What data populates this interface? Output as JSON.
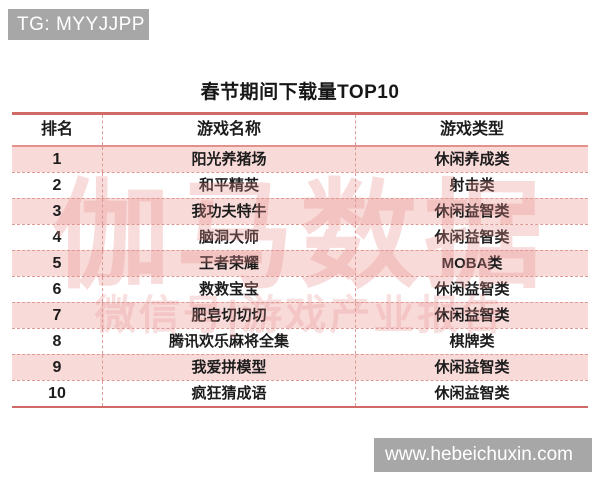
{
  "top_banner": {
    "text": "TG: MYYJJPP"
  },
  "title": "春节期间下载量TOP10",
  "watermark": {
    "line1": "伽马数据",
    "line2": "微信号|游戏产业报告"
  },
  "table": {
    "headers": [
      "排名",
      "游戏名称",
      "游戏类型"
    ],
    "rows": [
      {
        "rank": "1",
        "name": "阳光养猪场",
        "type": "休闲养成类"
      },
      {
        "rank": "2",
        "name": "和平精英",
        "type": "射击类"
      },
      {
        "rank": "3",
        "name": "我功夫特牛",
        "type": "休闲益智类"
      },
      {
        "rank": "4",
        "name": "脑洞大师",
        "type": "休闲益智类"
      },
      {
        "rank": "5",
        "name": "王者荣耀",
        "type": "MOBA类"
      },
      {
        "rank": "6",
        "name": "救救宝宝",
        "type": "休闲益智类"
      },
      {
        "rank": "7",
        "name": "肥皂切切切",
        "type": "休闲益智类"
      },
      {
        "rank": "8",
        "name": "腾讯欢乐麻将全集",
        "type": "棋牌类"
      },
      {
        "rank": "9",
        "name": "我爱拼模型",
        "type": "休闲益智类"
      },
      {
        "rank": "10",
        "name": "疯狂猜成语",
        "type": "休闲益智类"
      }
    ]
  },
  "bottom_banner": {
    "text": "www.hebeichuxin.com"
  },
  "colors": {
    "accent_red": "#cf6a66",
    "dashed_red": "#dd9a94",
    "row_pink": "#f8dad8",
    "banner_gray": "#a7a7a7",
    "watermark_pink": "#e98f8f"
  },
  "chart_data": {
    "type": "table",
    "title": "春节期间下载量TOP10",
    "columns": [
      "排名",
      "游戏名称",
      "游戏类型"
    ],
    "rows": [
      [
        "1",
        "阳光养猪场",
        "休闲养成类"
      ],
      [
        "2",
        "和平精英",
        "射击类"
      ],
      [
        "3",
        "我功夫特牛",
        "休闲益智类"
      ],
      [
        "4",
        "脑洞大师",
        "休闲益智类"
      ],
      [
        "5",
        "王者荣耀",
        "MOBA类"
      ],
      [
        "6",
        "救救宝宝",
        "休闲益智类"
      ],
      [
        "7",
        "肥皂切切切",
        "休闲益智类"
      ],
      [
        "8",
        "腾讯欢乐麻将全集",
        "棋牌类"
      ],
      [
        "9",
        "我爱拼模型",
        "休闲益智类"
      ],
      [
        "10",
        "疯狂猜成语",
        "休闲益智类"
      ]
    ]
  }
}
